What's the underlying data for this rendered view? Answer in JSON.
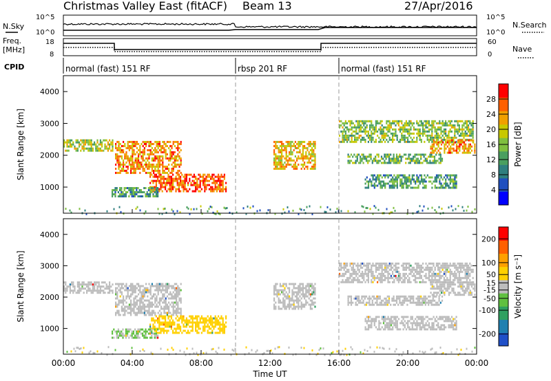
{
  "header": {
    "title": "Christmas Valley East (fitACF)",
    "beam": "Beam 13",
    "date": "27/Apr/2016"
  },
  "panels": {
    "nsky_label": "N.Sky",
    "nsearch_label": "N.Search",
    "nsky_ticks": [
      "10^5",
      "10^0"
    ],
    "nsearch_ticks": [
      "10^5",
      "10^0"
    ],
    "freq_label": "Freq.",
    "freq_unit": "[MHz]",
    "freq_ticks": [
      "18",
      "8"
    ],
    "nave_label": "Nave",
    "nave_ticks": [
      "60",
      "0"
    ],
    "cpid_label": "CPID",
    "cpid_segments": [
      {
        "label": "normal (fast) 151 RF",
        "start_h": 0,
        "end_h": 10
      },
      {
        "label": "rbsp 201 RF",
        "start_h": 10,
        "end_h": 16
      },
      {
        "label": "normal (fast) 151 RF",
        "start_h": 16,
        "end_h": 24
      }
    ]
  },
  "chart_data": [
    {
      "type": "heatmap",
      "name": "power",
      "ylabel": "Slant Range [km]",
      "ylim": [
        180,
        4500
      ],
      "yticks": [
        1000,
        2000,
        3000,
        4000
      ],
      "colorbar": {
        "label": "Power [dB]",
        "ticks": [
          4,
          8,
          12,
          16,
          20,
          24,
          28
        ],
        "range": [
          0,
          32
        ],
        "colors": [
          "#0000ff",
          "#1f4fbf",
          "#2f7f7f",
          "#4a9f5f",
          "#7fbf3f",
          "#c8c800",
          "#f0a000",
          "#ff6000",
          "#ff0000"
        ]
      },
      "echo_regions": [
        {
          "t0": 0.0,
          "t1": 2.9,
          "r0": 2150,
          "r1": 2500,
          "power": 18
        },
        {
          "t0": 3.0,
          "t1": 6.8,
          "r0": 1450,
          "r1": 2450,
          "power": 24
        },
        {
          "t0": 5.0,
          "t1": 9.4,
          "r0": 880,
          "r1": 1420,
          "power": 27
        },
        {
          "t0": 2.8,
          "t1": 5.5,
          "r0": 700,
          "r1": 1000,
          "power": 12
        },
        {
          "t0": 12.2,
          "t1": 14.6,
          "r0": 1600,
          "r1": 2450,
          "power": 22
        },
        {
          "t0": 16.0,
          "t1": 23.8,
          "r0": 2450,
          "r1": 3100,
          "power": 16
        },
        {
          "t0": 16.5,
          "t1": 22.0,
          "r0": 1750,
          "r1": 2050,
          "power": 14
        },
        {
          "t0": 17.5,
          "t1": 22.8,
          "r0": 1000,
          "r1": 1400,
          "power": 12
        },
        {
          "t0": 21.3,
          "t1": 23.9,
          "r0": 2050,
          "r1": 2500,
          "power": 24
        }
      ]
    },
    {
      "type": "heatmap",
      "name": "velocity",
      "xlabel": "Time UT",
      "ylabel": "Slant Range [km]",
      "xlim": [
        0,
        24
      ],
      "xticks": [
        "00:00",
        "04:00",
        "08:00",
        "12:00",
        "16:00",
        "20:00",
        "00:00"
      ],
      "ylim": [
        180,
        4500
      ],
      "yticks": [
        1000,
        2000,
        3000,
        4000
      ],
      "colorbar": {
        "label": "Velocity [m s⁻¹]",
        "ticks": [
          200,
          100,
          50,
          15,
          -15,
          -50,
          -100,
          -200
        ],
        "range": [
          -250,
          250
        ],
        "colors": [
          "#2050c8",
          "#2080b0",
          "#2fa060",
          "#60c040",
          "#bcbcbc",
          "#ffd000",
          "#ffa000",
          "#ff6000",
          "#ff0000"
        ]
      },
      "echo_regions": [
        {
          "t0": 0.0,
          "t1": 2.9,
          "r0": 2150,
          "r1": 2500,
          "velocity": 0
        },
        {
          "t0": 3.0,
          "t1": 6.8,
          "r0": 1450,
          "r1": 2450,
          "velocity": 0
        },
        {
          "t0": 5.0,
          "t1": 9.4,
          "r0": 880,
          "r1": 1420,
          "velocity": 60
        },
        {
          "t0": 2.8,
          "t1": 5.5,
          "r0": 700,
          "r1": 1000,
          "velocity": -30
        },
        {
          "t0": 12.2,
          "t1": 14.6,
          "r0": 1600,
          "r1": 2450,
          "velocity": 0
        },
        {
          "t0": 16.0,
          "t1": 23.8,
          "r0": 2450,
          "r1": 3100,
          "velocity": 0
        },
        {
          "t0": 16.5,
          "t1": 22.0,
          "r0": 1750,
          "r1": 2050,
          "velocity": 0
        },
        {
          "t0": 17.5,
          "t1": 22.8,
          "r0": 1000,
          "r1": 1400,
          "velocity": 0
        },
        {
          "t0": 21.3,
          "t1": 23.9,
          "r0": 2050,
          "r1": 2500,
          "velocity": 0
        }
      ]
    }
  ]
}
